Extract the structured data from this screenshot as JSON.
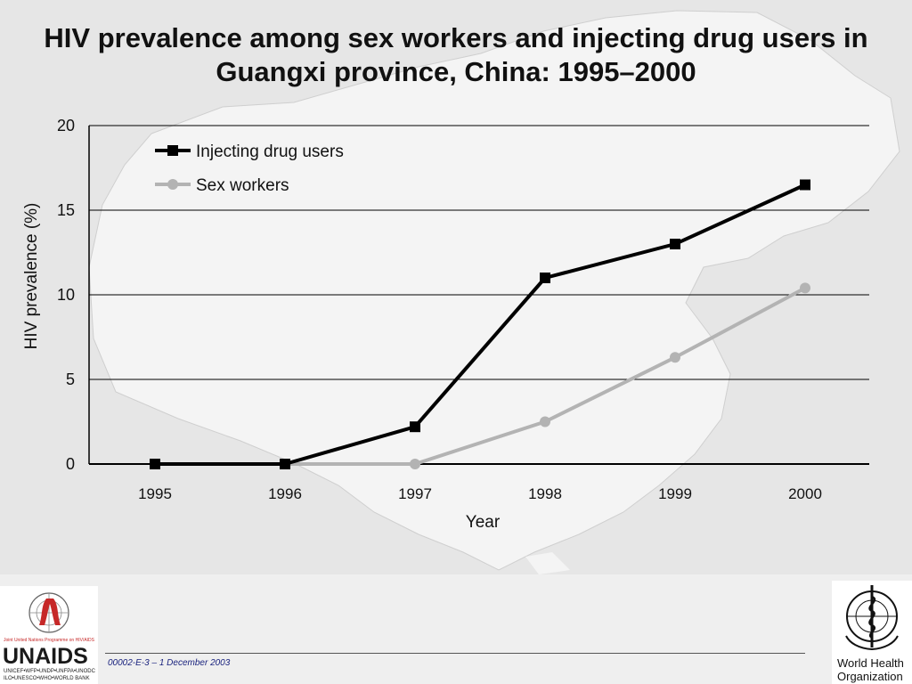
{
  "slide": {
    "title": "HIV prevalence among sex workers and injecting drug users in Guangxi province, China: 1995–2000",
    "background_map": "china-map-silhouette",
    "code": "00002-E-3 – 1 December 2003"
  },
  "chart_data": {
    "type": "line",
    "title": "HIV prevalence among sex workers and injecting drug users in Guangxi province, China: 1995–2000",
    "xlabel": "Year",
    "ylabel": "HIV prevalence (%)",
    "categories": [
      "1995",
      "1996",
      "1997",
      "1998",
      "1999",
      "2000"
    ],
    "ylim": [
      0,
      20
    ],
    "yticks": [
      0,
      5,
      10,
      15,
      20
    ],
    "grid": true,
    "legend": "top-left",
    "series": [
      {
        "name": "Injecting drug users",
        "color": "#000000",
        "marker": "square",
        "values": [
          0,
          0,
          2.2,
          11,
          13,
          16.5
        ]
      },
      {
        "name": "Sex workers",
        "color": "#b3b3b3",
        "marker": "circle",
        "values": [
          null,
          0,
          0,
          2.5,
          6.3,
          10.4
        ]
      }
    ]
  },
  "logos": {
    "unaids": {
      "tagline": "Joint United Nations Programme on HIV/AIDS",
      "name": "UNAIDS",
      "partners_line1": "UNICEF•WFP•UNDP•UNFPA•UNODC",
      "partners_line2": "ILO•UNESCO•WHO•WORLD BANK",
      "ribbon_color": "#c62828"
    },
    "who": {
      "name_line1": "World Health",
      "name_line2": "Organization",
      "emblem": "who-emblem-icon"
    }
  }
}
